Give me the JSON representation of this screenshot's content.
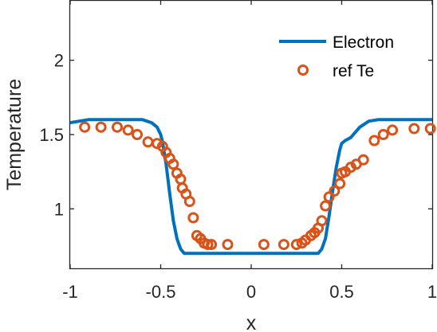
{
  "chart_data": {
    "type": "line",
    "xlabel": "x",
    "ylabel": "Temperature",
    "xlim": [
      -1,
      1
    ],
    "ylim": [
      0.6,
      2.4
    ],
    "xticks": [
      -1,
      -0.5,
      0,
      0.5,
      1
    ],
    "xtick_labels": [
      "-1",
      "-0.5",
      "0",
      "0.5",
      "1"
    ],
    "yticks": [
      1,
      1.5,
      2
    ],
    "ytick_labels": [
      "1",
      "1.5",
      "2"
    ],
    "grid": false,
    "legend_position": "top-right",
    "colors": {
      "electron": "#0072BD",
      "ref": "#D95319",
      "axis": "#262626"
    },
    "series": [
      {
        "name": "Electron",
        "style": "line",
        "x": [
          -1,
          -0.9,
          -0.8,
          -0.7,
          -0.6,
          -0.55,
          -0.52,
          -0.5,
          -0.49,
          -0.47,
          -0.45,
          -0.43,
          -0.41,
          -0.39,
          -0.37,
          -0.35,
          -0.3,
          -0.2,
          -0.1,
          0,
          0.1,
          0.2,
          0.3,
          0.35,
          0.37,
          0.39,
          0.41,
          0.43,
          0.45,
          0.47,
          0.49,
          0.5,
          0.52,
          0.55,
          0.6,
          0.65,
          0.7,
          0.8,
          0.9,
          1
        ],
        "y": [
          1.58,
          1.6,
          1.6,
          1.6,
          1.6,
          1.58,
          1.55,
          1.5,
          1.45,
          1.3,
          1.1,
          0.92,
          0.8,
          0.73,
          0.7,
          0.7,
          0.7,
          0.7,
          0.7,
          0.7,
          0.7,
          0.7,
          0.7,
          0.7,
          0.7,
          0.73,
          0.8,
          0.95,
          1.12,
          1.28,
          1.4,
          1.44,
          1.46,
          1.48,
          1.55,
          1.59,
          1.6,
          1.6,
          1.6,
          1.6
        ]
      },
      {
        "name": "ref Te",
        "style": "markers",
        "x": [
          -0.92,
          -0.83,
          -0.74,
          -0.68,
          -0.63,
          -0.57,
          -0.52,
          -0.49,
          -0.47,
          -0.45,
          -0.43,
          -0.41,
          -0.39,
          -0.38,
          -0.36,
          -0.34,
          -0.32,
          -0.3,
          -0.28,
          -0.26,
          -0.24,
          -0.22,
          -0.13,
          0.07,
          0.18,
          0.25,
          0.28,
          0.3,
          0.33,
          0.35,
          0.37,
          0.39,
          0.41,
          0.43,
          0.46,
          0.49,
          0.5,
          0.52,
          0.55,
          0.58,
          0.62,
          0.68,
          0.73,
          0.78,
          0.9,
          0.99
        ],
        "y": [
          1.55,
          1.55,
          1.55,
          1.53,
          1.5,
          1.45,
          1.44,
          1.42,
          1.38,
          1.34,
          1.3,
          1.24,
          1.2,
          1.14,
          1.1,
          1.05,
          0.94,
          0.82,
          0.8,
          0.77,
          0.76,
          0.76,
          0.76,
          0.76,
          0.76,
          0.76,
          0.77,
          0.79,
          0.82,
          0.84,
          0.87,
          0.92,
          1.02,
          1.08,
          1.12,
          1.17,
          1.24,
          1.25,
          1.28,
          1.3,
          1.33,
          1.46,
          1.5,
          1.53,
          1.54,
          1.54
        ]
      }
    ]
  }
}
